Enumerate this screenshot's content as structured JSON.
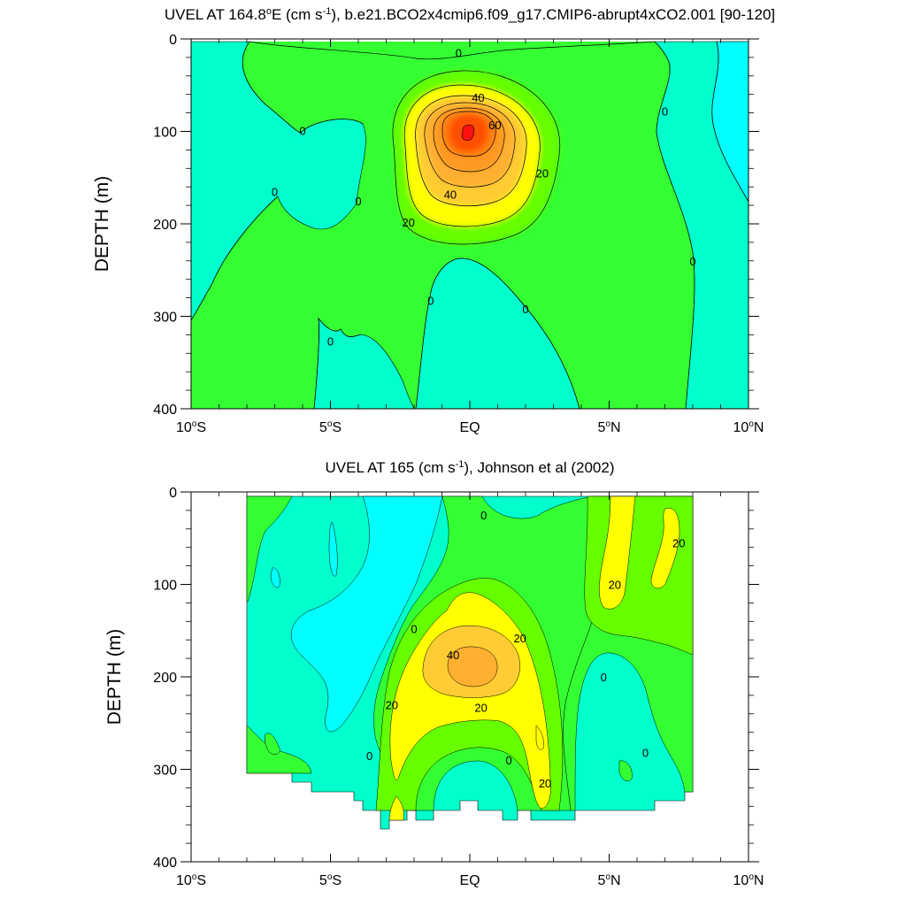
{
  "colors": {
    "neg_10_0": "#00ffff",
    "neg_0": "#00ffcc",
    "c0_10": "#33ff33",
    "c10_20": "#66ff00",
    "c20_30": "#ffff00",
    "c30_40": "#ffcc33",
    "c40_50": "#ffb030",
    "c50_60": "#ff9a22",
    "c60_70": "#ff7a10",
    "c70_80": "#ff5000",
    "c80_plus": "#ff1010"
  },
  "chart_data": [
    {
      "type": "contour",
      "title": "UVEL AT 164.8°E (cm s-1), b.e21.BCO2x4cmip6.f09_g17.CMIP6-abrupt4xCO2.001 [90-120]",
      "title_main": "UVEL AT 164.8",
      "title_unit": "E (cm s",
      "title_exp": "-1",
      "title_rest": "), b.e21.BCO2x4cmip6.f09_g17.CMIP6-abrupt4xCO2.001 [90-120]",
      "ylabel": "DEPTH (m)",
      "xlim": [
        -10,
        10
      ],
      "ylim": [
        400,
        0
      ],
      "x_ticks": [
        {
          "value": -10,
          "label": "10°S"
        },
        {
          "value": -5,
          "label": "5°S"
        },
        {
          "value": 0,
          "label": "EQ"
        },
        {
          "value": 5,
          "label": "5°N"
        },
        {
          "value": 10,
          "label": "10°N"
        }
      ],
      "y_ticks": [
        {
          "value": 0,
          "label": "0"
        },
        {
          "value": 100,
          "label": "100"
        },
        {
          "value": 200,
          "label": "200"
        },
        {
          "value": 300,
          "label": "300"
        },
        {
          "value": 400,
          "label": "400"
        }
      ],
      "contour_interval": 10,
      "core": {
        "lat": 0.0,
        "depth": 110,
        "max_value": 85
      },
      "contour_labels": [
        {
          "lat": -0.4,
          "depth": 15,
          "text": "0"
        },
        {
          "lat": 0.3,
          "depth": 63,
          "text": "40"
        },
        {
          "lat": 0.9,
          "depth": 93,
          "text": "60"
        },
        {
          "lat": 2.6,
          "depth": 145,
          "text": "20"
        },
        {
          "lat": -0.7,
          "depth": 168,
          "text": "40"
        },
        {
          "lat": -2.2,
          "depth": 198,
          "text": "20"
        },
        {
          "lat": -6.0,
          "depth": 99,
          "text": "0"
        },
        {
          "lat": -7.0,
          "depth": 165,
          "text": "0"
        },
        {
          "lat": -4.0,
          "depth": 175,
          "text": "0"
        },
        {
          "lat": 7.0,
          "depth": 78,
          "text": "0"
        },
        {
          "lat": 8.0,
          "depth": 240,
          "text": "0"
        },
        {
          "lat": -1.4,
          "depth": 283,
          "text": "0"
        },
        {
          "lat": 2.0,
          "depth": 292,
          "text": "0"
        },
        {
          "lat": -5.0,
          "depth": 327,
          "text": "0"
        }
      ]
    },
    {
      "type": "contour",
      "title": "UVEL AT 165 (cm s-1), Johnson et al (2002)",
      "title_main": "UVEL AT 165 (cm s",
      "title_exp": "-1",
      "title_rest": "), Johnson et al (2002)",
      "ylabel": "DEPTH (m)",
      "xlim": [
        -10,
        10
      ],
      "ylim": [
        400,
        0
      ],
      "x_ticks": [
        {
          "value": -10,
          "label": "10°S"
        },
        {
          "value": -5,
          "label": "5°S"
        },
        {
          "value": 0,
          "label": "EQ"
        },
        {
          "value": 5,
          "label": "5°N"
        },
        {
          "value": 10,
          "label": "10°N"
        }
      ],
      "y_ticks": [
        {
          "value": 0,
          "label": "0"
        },
        {
          "value": 100,
          "label": "100"
        },
        {
          "value": 200,
          "label": "200"
        },
        {
          "value": 300,
          "label": "300"
        },
        {
          "value": 400,
          "label": "400"
        }
      ],
      "data_extent_lat": [
        -8,
        8
      ],
      "core": {
        "lat": 0.0,
        "depth": 190,
        "max_value": 45
      },
      "contour_labels": [
        {
          "lat": 0.5,
          "depth": 25,
          "text": "0"
        },
        {
          "lat": 7.5,
          "depth": 55,
          "text": "20"
        },
        {
          "lat": 5.2,
          "depth": 100,
          "text": "20"
        },
        {
          "lat": -2.0,
          "depth": 148,
          "text": "0"
        },
        {
          "lat": 1.8,
          "depth": 158,
          "text": "20"
        },
        {
          "lat": -0.6,
          "depth": 176,
          "text": "40"
        },
        {
          "lat": 4.8,
          "depth": 200,
          "text": "0"
        },
        {
          "lat": -2.8,
          "depth": 230,
          "text": "20"
        },
        {
          "lat": 0.4,
          "depth": 233,
          "text": "20"
        },
        {
          "lat": -3.6,
          "depth": 285,
          "text": "0"
        },
        {
          "lat": 1.4,
          "depth": 290,
          "text": "0"
        },
        {
          "lat": 6.3,
          "depth": 282,
          "text": "0"
        },
        {
          "lat": 2.7,
          "depth": 315,
          "text": "20"
        }
      ]
    }
  ]
}
